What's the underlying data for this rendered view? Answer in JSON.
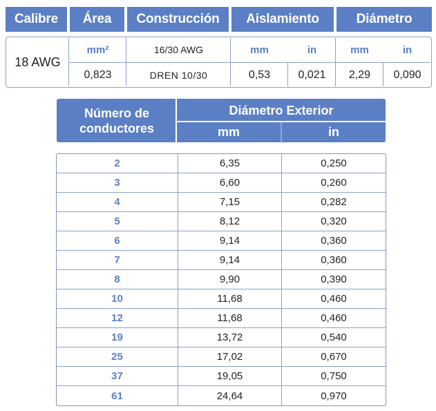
{
  "top_table": {
    "headers": {
      "calibre": "Calibre",
      "area": "Área",
      "construccion": "Construcción",
      "aislamiento": "Aislamiento",
      "diametro": "Diámetro"
    },
    "calibre_value": "18 AWG",
    "area_unit": "mm²",
    "area_value": "0,823",
    "construccion_top": "16/30 AWG",
    "construccion_bottom": "DREN 10/30",
    "aislamiento_units": [
      "mm",
      "in"
    ],
    "aislamiento_values": [
      "0,53",
      "0,021"
    ],
    "diametro_units": [
      "mm",
      "in"
    ],
    "diametro_values": [
      "2,29",
      "0,090"
    ]
  },
  "bottom_table": {
    "header_conductores": "Número de conductores",
    "header_diametro": "Diámetro Exterior",
    "unit_mm": "mm",
    "unit_in": "in",
    "rows": [
      {
        "n": "2",
        "mm": "6,35",
        "in": "0,250"
      },
      {
        "n": "3",
        "mm": "6,60",
        "in": "0,260"
      },
      {
        "n": "4",
        "mm": "7,15",
        "in": "0,282"
      },
      {
        "n": "5",
        "mm": "8,12",
        "in": "0,320"
      },
      {
        "n": "6",
        "mm": "9,14",
        "in": "0,360"
      },
      {
        "n": "7",
        "mm": "9,14",
        "in": "0,360"
      },
      {
        "n": "8",
        "mm": "9,90",
        "in": "0,390"
      },
      {
        "n": "10",
        "mm": "11,68",
        "in": "0,460"
      },
      {
        "n": "12",
        "mm": "11,68",
        "in": "0,460"
      },
      {
        "n": "19",
        "mm": "13,72",
        "in": "0,540"
      },
      {
        "n": "25",
        "mm": "17,02",
        "in": "0,670"
      },
      {
        "n": "37",
        "mm": "19,05",
        "in": "0,750"
      },
      {
        "n": "61",
        "mm": "24,64",
        "in": "0,970"
      }
    ]
  },
  "colors": {
    "header_blue": "#5b7fc4",
    "border_blue": "#8aa0cc",
    "text": "#222222"
  }
}
